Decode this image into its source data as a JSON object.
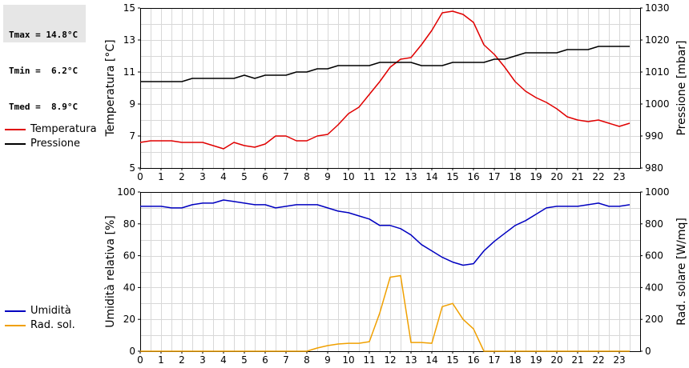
{
  "stats": {
    "tmax": "Tmax = 14.8°C",
    "tmin": "Tmin =  6.2°C",
    "tmed": "Tmed =  8.9°C"
  },
  "colors": {
    "temperatura": "#e00000",
    "pressione": "#000000",
    "umidita": "#0000c0",
    "radsol": "#f0a000",
    "grid": "#d8d8d8"
  },
  "chart_data": [
    {
      "type": "line",
      "xlim": [
        0,
        24
      ],
      "xticks": [
        0,
        1,
        2,
        3,
        4,
        5,
        6,
        7,
        8,
        9,
        10,
        11,
        12,
        13,
        14,
        15,
        16,
        17,
        18,
        19,
        20,
        21,
        22,
        23
      ],
      "ylabel_left": "Temperatura [°C]",
      "ylabel_right": "Pressione [mbar]",
      "ylim_left": [
        5,
        15
      ],
      "yticks_left": [
        5,
        7,
        9,
        11,
        13,
        15
      ],
      "ylim_right": [
        980,
        1030
      ],
      "yticks_right": [
        980,
        990,
        1000,
        1010,
        1020,
        1030
      ],
      "grid": true,
      "legend": "left",
      "series": [
        {
          "name": "Temperatura",
          "axis": "left",
          "x": [
            0,
            0.5,
            1,
            1.5,
            2,
            2.5,
            3,
            3.5,
            4,
            4.5,
            5,
            5.5,
            6,
            6.5,
            7,
            7.5,
            8,
            8.5,
            9,
            9.5,
            10,
            10.5,
            11,
            11.5,
            12,
            12.5,
            13,
            13.5,
            14,
            14.5,
            15,
            15.5,
            16,
            16.5,
            17,
            17.5,
            18,
            18.5,
            19,
            19.5,
            20,
            20.5,
            21,
            21.5,
            22,
            22.5,
            23,
            23.5
          ],
          "values": [
            6.6,
            6.7,
            6.7,
            6.7,
            6.6,
            6.6,
            6.6,
            6.4,
            6.2,
            6.6,
            6.4,
            6.3,
            6.5,
            7.0,
            7.0,
            6.7,
            6.7,
            7.0,
            7.1,
            7.7,
            8.4,
            8.8,
            9.6,
            10.4,
            11.3,
            11.8,
            11.9,
            12.7,
            13.6,
            14.7,
            14.8,
            14.6,
            14.1,
            12.7,
            12.1,
            11.3,
            10.4,
            9.8,
            9.4,
            9.1,
            8.7,
            8.2,
            8.0,
            7.9,
            8.0,
            7.8,
            7.6,
            7.8
          ]
        },
        {
          "name": "Pressione",
          "axis": "right",
          "x": [
            0,
            0.5,
            1,
            1.5,
            2,
            2.5,
            3,
            3.5,
            4,
            4.5,
            5,
            5.5,
            6,
            6.5,
            7,
            7.5,
            8,
            8.5,
            9,
            9.5,
            10,
            10.5,
            11,
            11.5,
            12,
            12.5,
            13,
            13.5,
            14,
            14.5,
            15,
            15.5,
            16,
            16.5,
            17,
            17.5,
            18,
            18.5,
            19,
            19.5,
            20,
            20.5,
            21,
            21.5,
            22,
            22.5,
            23,
            23.5
          ],
          "values": [
            1007,
            1007,
            1007,
            1007,
            1007,
            1008,
            1008,
            1008,
            1008,
            1008,
            1009,
            1008,
            1009,
            1009,
            1009,
            1010,
            1010,
            1011,
            1011,
            1012,
            1012,
            1012,
            1012,
            1013,
            1013,
            1013,
            1013,
            1012,
            1012,
            1012,
            1013,
            1013,
            1013,
            1013,
            1014,
            1014,
            1015,
            1016,
            1016,
            1016,
            1016,
            1017,
            1017,
            1017,
            1018,
            1018,
            1018,
            1018
          ]
        }
      ]
    },
    {
      "type": "line",
      "xlim": [
        0,
        24
      ],
      "xticks": [
        0,
        1,
        2,
        3,
        4,
        5,
        6,
        7,
        8,
        9,
        10,
        11,
        12,
        13,
        14,
        15,
        16,
        17,
        18,
        19,
        20,
        21,
        22,
        23
      ],
      "ylabel_left": "Umidità relativa [%]",
      "ylabel_right": "Rad. solare [W/mq]",
      "ylim_left": [
        0,
        100
      ],
      "yticks_left": [
        0,
        20,
        40,
        60,
        80,
        100
      ],
      "ylim_right": [
        0,
        1000
      ],
      "yticks_right": [
        0,
        200,
        400,
        600,
        800,
        1000
      ],
      "grid": true,
      "legend": "left",
      "series": [
        {
          "name": "Umidità",
          "axis": "left",
          "x": [
            0,
            0.5,
            1,
            1.5,
            2,
            2.5,
            3,
            3.5,
            4,
            4.5,
            5,
            5.5,
            6,
            6.5,
            7,
            7.5,
            8,
            8.5,
            9,
            9.5,
            10,
            10.5,
            11,
            11.5,
            12,
            12.5,
            13,
            13.5,
            14,
            14.5,
            15,
            15.5,
            16,
            16.5,
            17,
            17.5,
            18,
            18.5,
            19,
            19.5,
            20,
            20.5,
            21,
            21.5,
            22,
            22.5,
            23,
            23.5
          ],
          "values": [
            91,
            91,
            91,
            90,
            90,
            92,
            93,
            93,
            95,
            94,
            93,
            92,
            92,
            90,
            91,
            92,
            92,
            92,
            90,
            88,
            87,
            85,
            83,
            79,
            79,
            77,
            73,
            67,
            63,
            59,
            56,
            54,
            55,
            63,
            69,
            74,
            79,
            82,
            86,
            90,
            91,
            91,
            91,
            92,
            93,
            91,
            91,
            92
          ]
        },
        {
          "name": "Rad. sol.",
          "axis": "right",
          "x": [
            0,
            0.5,
            1,
            1.5,
            2,
            2.5,
            3,
            3.5,
            4,
            4.5,
            5,
            5.5,
            6,
            6.5,
            7,
            7.5,
            8,
            8.5,
            9,
            9.5,
            10,
            10.5,
            11,
            11.5,
            12,
            12.5,
            13,
            13.5,
            14,
            14.5,
            15,
            15.5,
            16,
            16.5,
            17,
            17.5,
            18,
            18.5,
            19,
            19.5,
            20,
            20.5,
            21,
            21.5,
            22,
            22.5,
            23,
            23.5
          ],
          "values": [
            0,
            0,
            0,
            0,
            0,
            0,
            0,
            0,
            0,
            0,
            0,
            0,
            0,
            0,
            0,
            0,
            0,
            20,
            35,
            45,
            50,
            50,
            60,
            240,
            465,
            475,
            55,
            55,
            50,
            280,
            300,
            200,
            140,
            0,
            0,
            0,
            0,
            0,
            0,
            0,
            0,
            0,
            0,
            0,
            0,
            0,
            0,
            0
          ]
        }
      ]
    }
  ]
}
